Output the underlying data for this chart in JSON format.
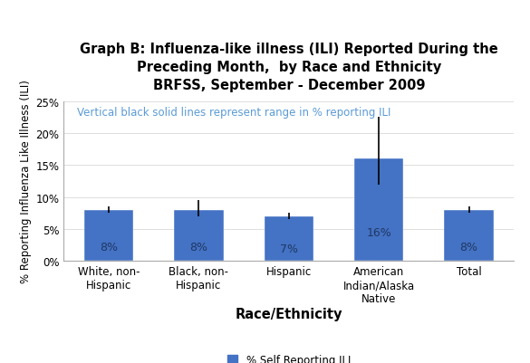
{
  "title_line1": "Graph B: Influenza-like illness (ILI) Reported During the",
  "title_line2": "Preceding Month,  by Race and Ethnicity",
  "title_line3": "BRFSS, September - December 2009",
  "categories": [
    "White, non-\nHispanic",
    "Black, non-\nHispanic",
    "Hispanic",
    "American\nIndian/Alaska\nNative",
    "Total"
  ],
  "values": [
    8,
    8,
    7,
    16,
    8
  ],
  "error_low": [
    7.5,
    7.0,
    6.5,
    12.0,
    7.5
  ],
  "error_high": [
    8.5,
    9.5,
    7.5,
    22.5,
    8.5
  ],
  "bar_color": "#4472C4",
  "label_texts": [
    "8%",
    "8%",
    "7%",
    "16%",
    "8%"
  ],
  "annotation": "Vertical black solid lines represent range in % reporting ILI",
  "annotation_color": "#5B9BD5",
  "xlabel": "Race/Ethnicity",
  "ylabel": "% Reporting Influenza Like Illness (ILI)",
  "ylim": [
    0,
    25
  ],
  "yticks": [
    0,
    5,
    10,
    15,
    20,
    25
  ],
  "ytick_labels": [
    "0%",
    "5%",
    "10%",
    "15%",
    "20%",
    "25%"
  ],
  "legend_label": "% Self Reporting ILI",
  "background_color": "#FFFFFF",
  "title_fontsize": 10.5,
  "axis_label_fontsize": 9.5,
  "tick_fontsize": 8.5,
  "bar_label_fontsize": 9,
  "annotation_fontsize": 8.5
}
